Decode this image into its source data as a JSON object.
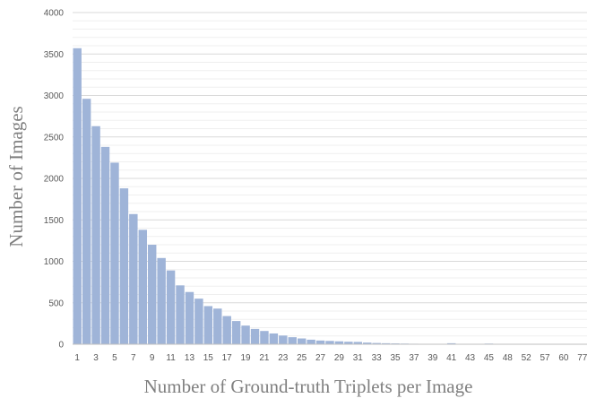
{
  "chart_data": {
    "type": "bar",
    "title": "",
    "xlabel": "Number of Ground-truth Triplets per Image",
    "ylabel": "Number of Images",
    "ylim": [
      0,
      4000
    ],
    "y_ticks": [
      0,
      500,
      1000,
      1500,
      2000,
      2500,
      3000,
      3500,
      4000
    ],
    "grid": true,
    "legend": "none",
    "bar_color": "#9fb4d8",
    "categories": [
      "1",
      "2",
      "3",
      "4",
      "5",
      "6",
      "7",
      "8",
      "9",
      "10",
      "11",
      "12",
      "13",
      "14",
      "15",
      "16",
      "17",
      "18",
      "19",
      "20",
      "21",
      "22",
      "23",
      "24",
      "25",
      "26",
      "27",
      "28",
      "29",
      "30",
      "31",
      "32",
      "33",
      "34",
      "35",
      "36",
      "37",
      "38",
      "39",
      "40",
      "41",
      "42",
      "43",
      "44",
      "45",
      "46",
      "48",
      "50",
      "52",
      "55",
      "57",
      "58",
      "60",
      "66",
      "77"
    ],
    "x_tick_labels": [
      "1",
      "3",
      "5",
      "7",
      "9",
      "11",
      "13",
      "15",
      "17",
      "19",
      "21",
      "23",
      "25",
      "27",
      "29",
      "31",
      "33",
      "35",
      "37",
      "39",
      "41",
      "43",
      "45",
      "48",
      "52",
      "57",
      "60",
      "77"
    ],
    "values": [
      3570,
      2960,
      2630,
      2380,
      2190,
      1880,
      1570,
      1380,
      1200,
      1040,
      890,
      710,
      630,
      550,
      460,
      430,
      340,
      280,
      225,
      185,
      160,
      130,
      105,
      85,
      70,
      55,
      45,
      40,
      35,
      30,
      28,
      20,
      15,
      12,
      10,
      8,
      6,
      5,
      4,
      3,
      12,
      3,
      3,
      2,
      8,
      2,
      2,
      1,
      1,
      1,
      1,
      1,
      1,
      1,
      1
    ]
  }
}
